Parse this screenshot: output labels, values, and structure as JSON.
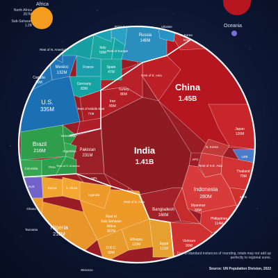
{
  "chart_data": {
    "type": "voronoi",
    "unit": "population",
    "regions": [
      {
        "name": "Africa",
        "color": "#f39c1f"
      },
      {
        "name": "Oceania",
        "color": "#6a5fc4"
      }
    ],
    "legend": [
      {
        "label": "North Africa",
        "value": "257M"
      },
      {
        "label": "Sub-Saharan",
        "value": "1.2B"
      }
    ],
    "cells": [
      {
        "name": "China",
        "value": "1.45B",
        "color": "#b5161f"
      },
      {
        "name": "India",
        "value": "1.41B",
        "color": "#8e1a22"
      },
      {
        "name": "Indonesia",
        "value": "280M",
        "color": "#d83b3b"
      },
      {
        "name": "U.S.",
        "value": "335M",
        "color": "#1b6fb3"
      },
      {
        "name": "Pakistan",
        "value": "231M",
        "color": "#9a1f27"
      },
      {
        "name": "Nigeria",
        "value": "218M",
        "color": "#e8962a"
      },
      {
        "name": "Brazil",
        "value": "216M",
        "color": "#2e9e4d"
      },
      {
        "name": "Bangladesh",
        "value": "168M",
        "color": "#a32128"
      },
      {
        "name": "Russia",
        "value": "146M",
        "color": "#2a8fbf"
      },
      {
        "name": "Mexico",
        "value": "132M",
        "color": "#2177b8"
      },
      {
        "name": "Japan",
        "value": "126M",
        "color": "#c7262b"
      },
      {
        "name": "Philippines",
        "value": "114M",
        "color": "#d43434"
      },
      {
        "name": "Ethiopia",
        "value": "123M",
        "color": "#e99b2c"
      },
      {
        "name": "Egypt",
        "value": "111M",
        "color": "#e5a030"
      },
      {
        "name": "Vietnam",
        "value": "99M",
        "color": "#cf3030"
      },
      {
        "name": "Rest of Sub-Saharan Africa",
        "value": "307M",
        "color": "#ee9a28"
      },
      {
        "name": "Germany",
        "value": "83M",
        "color": "#16a3a3"
      },
      {
        "name": "Turkey",
        "value": "86M",
        "color": "#b8202a"
      },
      {
        "name": "Iran",
        "value": "89M",
        "color": "#b31e27"
      },
      {
        "name": "Thailand",
        "value": "70M",
        "color": "#d23232"
      },
      {
        "name": "Myanmar",
        "value": "55M",
        "color": "#c62c2c"
      },
      {
        "name": "D.R.C.",
        "value": "99M",
        "color": "#e89a2d"
      },
      {
        "name": "Canada",
        "value": "39M",
        "color": "#1f74b5"
      },
      {
        "name": "Rest of Middle East",
        "value": "71M",
        "color": "#ad1d26"
      },
      {
        "name": "Rest of E. Asia",
        "value": "",
        "color": "#bd2026"
      },
      {
        "name": "Rest of S. Asia",
        "value": "",
        "color": "#9c1c24"
      },
      {
        "name": "S. Korea",
        "value": "52M",
        "color": "#c42a2f"
      },
      {
        "name": "N. Korea",
        "value": "",
        "color": "#c42a2f"
      },
      {
        "name": "UZB",
        "value": "",
        "color": "#4a7cc9"
      },
      {
        "name": "AFG",
        "value": "",
        "color": "#a01d25"
      },
      {
        "name": "Rest of S.E. Asia",
        "value": "",
        "color": "#d13a3a"
      },
      {
        "name": "MYS",
        "value": "",
        "color": "#cf3131"
      },
      {
        "name": "NPL",
        "value": "",
        "color": "#8c1b22"
      },
      {
        "name": "Rest of Europe",
        "value": "",
        "color": "#16a3a3"
      },
      {
        "name": "Italy",
        "value": "59M",
        "color": "#1aa7a0"
      },
      {
        "name": "Spain",
        "value": "47M",
        "color": "#18a69d"
      },
      {
        "name": "France",
        "value": "",
        "color": "#1a9eab"
      },
      {
        "name": "Poland",
        "value": "",
        "color": "#2aa0c2"
      },
      {
        "name": "Ukraine",
        "value": "",
        "color": "#2994c3"
      },
      {
        "name": "Rest of N. America",
        "value": "",
        "color": "#2270b0"
      },
      {
        "name": "Colombia",
        "value": "",
        "color": "#37a653"
      },
      {
        "name": "Argentina",
        "value": "",
        "color": "#35a651"
      },
      {
        "name": "Venezuela",
        "value": "",
        "color": "#2d9a4a"
      },
      {
        "name": "Peru",
        "value": "",
        "color": "#2ea04d"
      },
      {
        "name": "Rest of S. America",
        "value": "",
        "color": "#2f9c4c"
      },
      {
        "name": "Kenya",
        "value": "",
        "color": "#f0a531"
      },
      {
        "name": "Ghana",
        "value": "",
        "color": "#ec9b2c"
      },
      {
        "name": "Tanzania",
        "value": "",
        "color": "#e8962c"
      },
      {
        "name": "Uganda",
        "value": "",
        "color": "#ed9a2a"
      },
      {
        "name": "S. Africa",
        "value": "",
        "color": "#f3a632"
      },
      {
        "name": "Morocco",
        "value": "",
        "color": "#eca538"
      },
      {
        "name": "Algeria",
        "value": "",
        "color": "#efab3a"
      },
      {
        "name": "Sudan",
        "value": "",
        "color": "#eaa234"
      },
      {
        "name": "AUS",
        "value": "",
        "color": "#7163c8"
      }
    ],
    "footnote": "Due to standard instances of rounding, totals may not add up perfectly to regional sums.",
    "source": "Source: UN Population Division, 2022",
    "grid": false
  }
}
